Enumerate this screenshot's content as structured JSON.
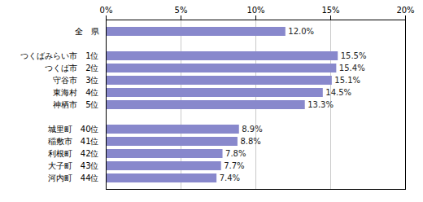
{
  "chart_data": {
    "type": "bar",
    "orientation": "horizontal",
    "categories": [
      "全　県",
      null,
      "つくばみらい市　1位",
      "つくば市　2位",
      "守谷市　3位",
      "東海村　4位",
      "神栖市　5位",
      null,
      "城里町　40位",
      "稲敷市　41位",
      "利根町　42位",
      "大子町　43位",
      "河内町　44位"
    ],
    "values": [
      12.0,
      null,
      15.5,
      15.4,
      15.1,
      14.5,
      13.3,
      null,
      8.9,
      8.8,
      7.8,
      7.7,
      7.4
    ],
    "value_labels": [
      "12.0%",
      null,
      "15.5%",
      "15.4%",
      "15.1%",
      "14.5%",
      "13.3%",
      null,
      "8.9%",
      "8.8%",
      "7.8%",
      "7.7%",
      "7.4%"
    ],
    "color": "#8888cc",
    "xlim": [
      0,
      20
    ],
    "xticks": [
      {
        "value": 0,
        "label": "0%"
      },
      {
        "value": 5,
        "label": "5%"
      },
      {
        "value": 10,
        "label": "10%"
      },
      {
        "value": 15,
        "label": "15%"
      },
      {
        "value": 20,
        "label": "20%"
      }
    ],
    "grid": true,
    "data_labels": true
  }
}
